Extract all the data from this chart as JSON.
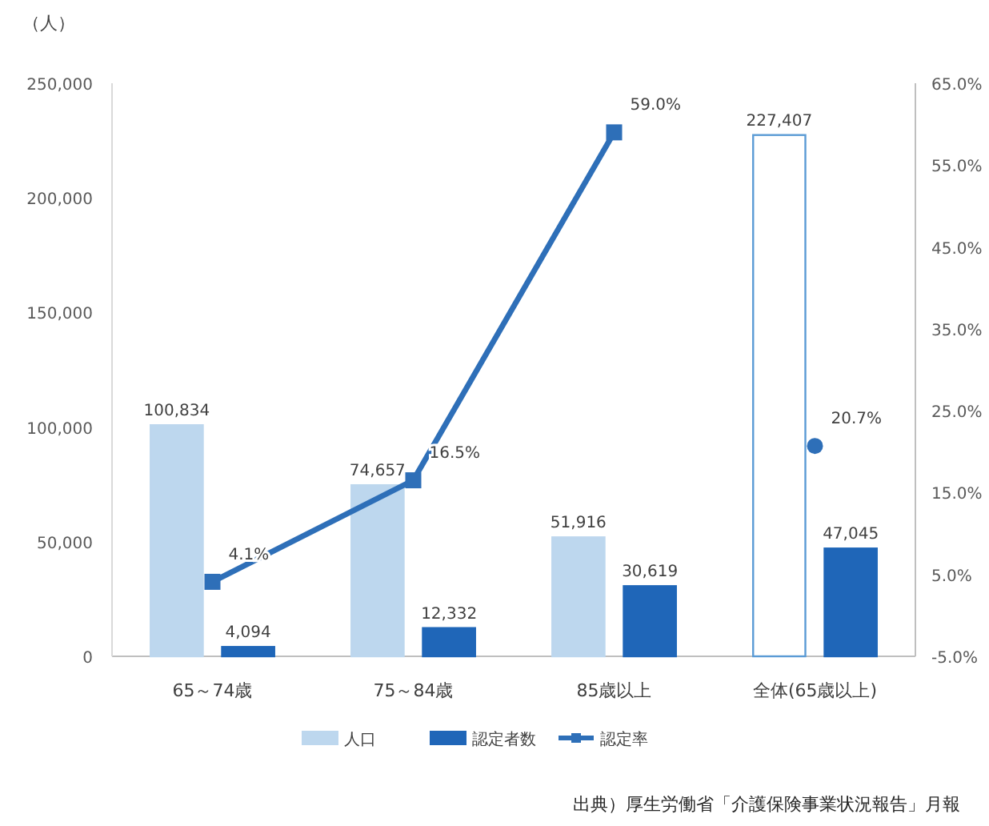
{
  "chart_data": {
    "type": "bar",
    "ylabel": "（人）",
    "categories": [
      "65～74歳",
      "75～84歳",
      "85歳以上",
      "全体(65歳以上)"
    ],
    "series": [
      {
        "name": "人口",
        "colors": [
          "#bdd7ee",
          "#bdd7ee",
          "#bdd7ee",
          "#ffffff"
        ],
        "color": "#bdd7ee",
        "values": [
          100834,
          74657,
          51916,
          227407
        ],
        "value_labels": [
          "100,834",
          "74,657",
          "51,916",
          "227,407"
        ]
      },
      {
        "name": "認定者数",
        "color": "#1f66b8",
        "values": [
          4094,
          12332,
          30619,
          47045
        ],
        "value_labels": [
          "4,094",
          "12,332",
          "30,619",
          "47,045"
        ]
      },
      {
        "name": "認定率",
        "type": "line",
        "axis": "y2",
        "color": "#2e6fb8",
        "marker": "square",
        "values": [
          4.1,
          16.5,
          59.0,
          null
        ],
        "value_labels": [
          "4.1%",
          "16.5%",
          "59.0%",
          null
        ]
      },
      {
        "type": "scatter",
        "axis": "y2",
        "color": "#2e6fb8",
        "marker": "circle",
        "values": [
          null,
          null,
          null,
          20.7
        ],
        "value_labels": [
          null,
          null,
          null,
          "20.7%"
        ]
      }
    ],
    "ylim": [
      0,
      250000
    ],
    "yticks": [
      {
        "value": 0,
        "label": "0"
      },
      {
        "value": 50000,
        "label": "50,000"
      },
      {
        "value": 100000,
        "label": "100,000"
      },
      {
        "value": 150000,
        "label": "150,000"
      },
      {
        "value": 200000,
        "label": "200,000"
      },
      {
        "value": 250000,
        "label": "250,000"
      }
    ],
    "y2lim": [
      -5,
      65
    ],
    "y2ticks": [
      {
        "value": -5,
        "label": "-5.0%"
      },
      {
        "value": 5,
        "label": "5.0%"
      },
      {
        "value": 15,
        "label": "15.0%"
      },
      {
        "value": 25,
        "label": "25.0%"
      },
      {
        "value": 35,
        "label": "35.0%"
      },
      {
        "value": 45,
        "label": "45.0%"
      },
      {
        "value": 55,
        "label": "55.0%"
      },
      {
        "value": 65,
        "label": "65.0%"
      }
    ],
    "legend": "bottom",
    "grid": false,
    "annotations": [
      "出典）厚生労働省「介護保険事業状況報告」月報"
    ]
  }
}
